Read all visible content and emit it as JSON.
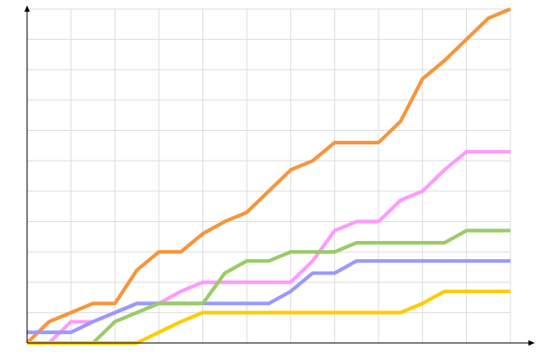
{
  "chart_data": {
    "type": "line",
    "x": [
      0,
      1,
      2,
      3,
      4,
      5,
      6,
      7,
      8,
      9,
      10,
      11,
      12,
      13,
      14,
      15,
      16,
      17,
      18,
      19,
      20,
      21,
      22
    ],
    "xlim": [
      0,
      22
    ],
    "xticks": [
      0,
      2,
      4,
      6,
      8,
      10,
      12,
      14,
      16,
      18,
      20,
      22
    ],
    "ylim": [
      0,
      11
    ],
    "yticks": [
      1,
      2,
      3,
      4,
      5,
      6,
      7,
      8,
      9,
      10,
      11
    ],
    "grid": true,
    "series": [
      {
        "color": "#f7953c",
        "values": [
          0,
          0.7,
          1,
          1.3,
          1.3,
          2.4,
          3,
          3,
          3.6,
          4,
          4.3,
          5,
          5.7,
          6,
          6.6,
          6.6,
          6.6,
          7.3,
          8.7,
          9.3,
          10,
          10.7,
          11
        ]
      },
      {
        "color": "#ff99ff",
        "values": [
          0,
          0,
          0.7,
          0.7,
          1,
          1.3,
          1.3,
          1.7,
          2,
          2,
          2,
          2,
          2,
          2.7,
          3.7,
          4,
          4,
          4.7,
          5,
          5.7,
          6.3,
          6.3,
          6.3
        ]
      },
      {
        "color": "#9999ff",
        "values": [
          0.35,
          0.35,
          0.35,
          0.7,
          1,
          1.3,
          1.3,
          1.3,
          1.3,
          1.3,
          1.3,
          1.3,
          1.7,
          2.3,
          2.3,
          2.7,
          2.7,
          2.7,
          2.7,
          2.7,
          2.7,
          2.7,
          2.7
        ]
      },
      {
        "color": "#99cc66",
        "values": [
          0,
          0,
          0,
          0,
          0.7,
          1,
          1.3,
          1.3,
          1.3,
          2.3,
          2.7,
          2.7,
          3,
          3,
          3,
          3.3,
          3.3,
          3.3,
          3.3,
          3.3,
          3.7,
          3.7,
          3.7
        ]
      },
      {
        "color": "#ffcc00",
        "values": [
          0,
          0,
          0,
          0,
          0,
          0,
          0.35,
          0.7,
          1,
          1,
          1,
          1,
          1,
          1,
          1,
          1,
          1,
          1,
          1.3,
          1.7,
          1.7,
          1.7,
          1.7
        ]
      }
    ]
  }
}
